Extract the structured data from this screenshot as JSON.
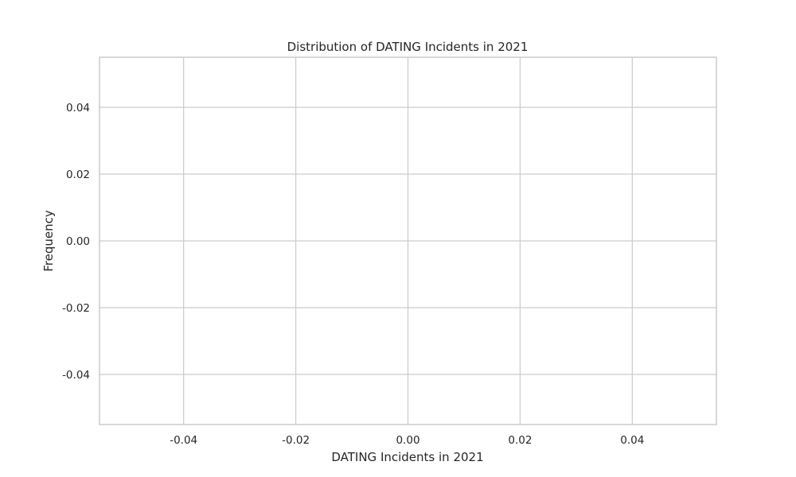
{
  "chart_data": {
    "type": "bar",
    "title": "Distribution of DATING Incidents in 2021",
    "xlabel": "DATING Incidents in 2021",
    "ylabel": "Frequency",
    "xlim": [
      -0.055,
      0.055
    ],
    "ylim": [
      -0.055,
      0.055
    ],
    "xticks": [
      -0.04,
      -0.02,
      0.0,
      0.02,
      0.04
    ],
    "yticks": [
      -0.04,
      -0.02,
      0.0,
      0.02,
      0.04
    ],
    "xtick_labels": [
      "-0.04",
      "-0.02",
      "0.00",
      "0.02",
      "0.04"
    ],
    "ytick_labels": [
      "-0.04",
      "-0.02",
      "0.00",
      "0.02",
      "0.04"
    ],
    "values": [],
    "grid": true,
    "colors": {
      "grid": "#cccccc",
      "frame": "#cccccc",
      "text": "#262626",
      "background": "#ffffff"
    }
  }
}
